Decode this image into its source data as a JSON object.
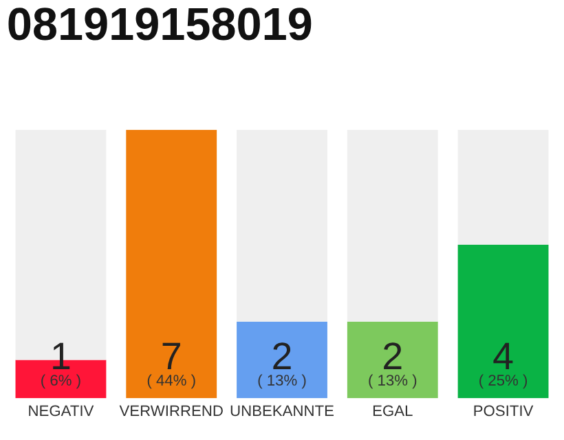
{
  "chart_data": {
    "type": "bar",
    "title": "081919158019",
    "categories": [
      "NEGATIV",
      "VERWIRREND",
      "UNBEKANNTE",
      "EGAL",
      "POSITIV"
    ],
    "stacked": true,
    "ylim": [
      0,
      7
    ],
    "tick_labels": "x",
    "grid": false,
    "legend": false,
    "series": [
      {
        "colors": [
          "#ff1538",
          "#f07d0c",
          "#659ff0",
          "#7dc95d",
          "#0ab345"
        ],
        "values": [
          1,
          7,
          2,
          2,
          4
        ],
        "value_labels": [
          "1",
          "7",
          "2",
          "2",
          "4"
        ]
      },
      {
        "color": "#efefef",
        "values": [
          6,
          0,
          5,
          5,
          3
        ]
      }
    ],
    "annotations": [
      {
        "text": "( 6% )",
        "x": "NEGATIV",
        "y": 0
      },
      {
        "text": "( 44% )",
        "x": "VERWIRREND",
        "y": 0
      },
      {
        "text": "( 13% )",
        "x": "UNBEKANNTE",
        "y": 0
      },
      {
        "text": "( 13% )",
        "x": "EGAL",
        "y": 0
      },
      {
        "text": "( 25% )",
        "x": "POSITIV",
        "y": 0
      }
    ]
  }
}
